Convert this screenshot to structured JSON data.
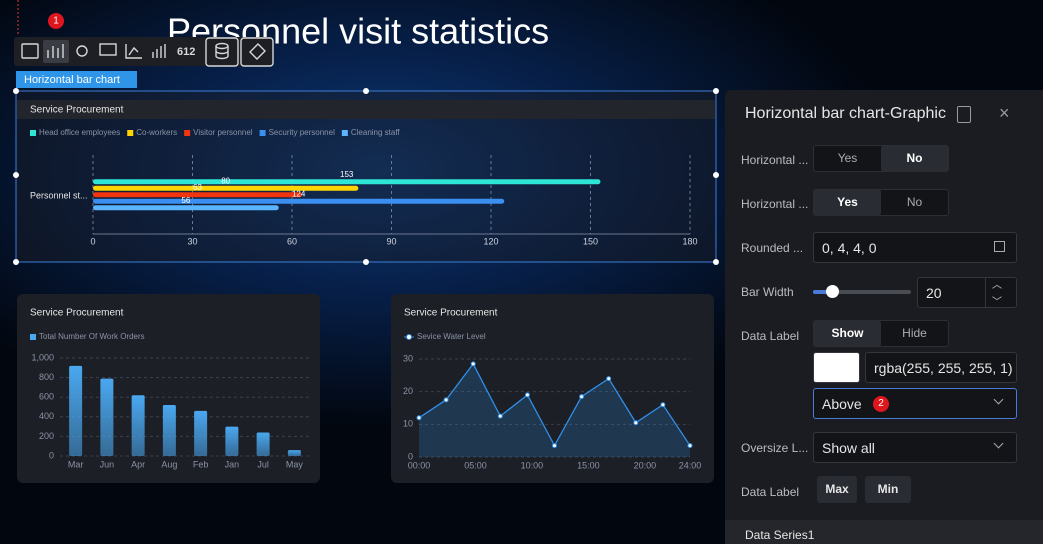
{
  "page_title": "Personnel visit statistics",
  "toolbar": {
    "badge": "1",
    "selected_label": "Horizontal bar chart"
  },
  "chart_data": [
    {
      "type": "hbar",
      "title": "Service Procurement",
      "categories": [
        "Personnel st..."
      ],
      "series": [
        {
          "name": "Head office employees",
          "color": "#2ee6d6",
          "values": [
            153
          ]
        },
        {
          "name": "Co-workers",
          "color": "#ffd400",
          "values": [
            80
          ]
        },
        {
          "name": "Visitor personnel",
          "color": "#f0350f",
          "values": [
            63
          ]
        },
        {
          "name": "Security personnel",
          "color": "#3a8ff0",
          "values": [
            124
          ]
        },
        {
          "name": "Cleaning staff",
          "color": "#5ab4ff",
          "values": [
            56
          ]
        }
      ],
      "xlim": [
        0,
        180
      ],
      "xticks": [
        0,
        30,
        60,
        90,
        120,
        150,
        180
      ],
      "grid": true
    },
    {
      "type": "bar",
      "title": "Service Procurement",
      "categories": [
        "Mar",
        "Jun",
        "Apr",
        "Aug",
        "Feb",
        "Jan",
        "Jul",
        "May"
      ],
      "series": [
        {
          "name": "Total Number Of Work Orders",
          "color": "#4aa8f0",
          "values": [
            920,
            790,
            620,
            520,
            460,
            300,
            240,
            60
          ]
        }
      ],
      "ylim": [
        0,
        1000
      ],
      "yticks": [
        0,
        200,
        400,
        600,
        800,
        {
          "value": 1000,
          "label": "1,000"
        }
      ],
      "grid": true
    },
    {
      "type": "line",
      "title": "Service Procurement",
      "x": [
        0,
        2.4,
        4.8,
        7.2,
        9.6,
        12,
        14.4,
        16.8,
        19.2,
        21.6,
        24
      ],
      "series": [
        {
          "name": "Sevice Water Level",
          "color": "#2f8fe8",
          "values": [
            12,
            17.5,
            28.5,
            12.5,
            19,
            3.5,
            18.5,
            24,
            10.5,
            16,
            3.5
          ]
        }
      ],
      "xlim": [
        0,
        24
      ],
      "xticks": [
        {
          "value": 0,
          "label": "00:00"
        },
        {
          "value": 5,
          "label": "05:00"
        },
        {
          "value": 10,
          "label": "10:00"
        },
        {
          "value": 15,
          "label": "15:00"
        },
        {
          "value": 20,
          "label": "20:00"
        },
        {
          "value": 24,
          "label": "24:00"
        }
      ],
      "ylim": [
        0,
        30
      ],
      "yticks": [
        0,
        10,
        20,
        30
      ],
      "grid": true
    }
  ],
  "panel": {
    "title": "Horizontal bar chart-Graphic",
    "horizontal_1": {
      "label": "Horizontal ...",
      "options": [
        "Yes",
        "No"
      ],
      "selected": 1
    },
    "horizontal_2": {
      "label": "Horizontal ...",
      "options": [
        "Yes",
        "No"
      ],
      "selected": 0
    },
    "rounded": {
      "label": "Rounded ...",
      "value": "0,  4,  4,  0"
    },
    "bar_width": {
      "label": "Bar Width",
      "value": 20
    },
    "data_label": {
      "label": "Data Label",
      "options": [
        "Show",
        "Hide"
      ],
      "selected": 0,
      "color": "rgba(255, 255, 255, 1)",
      "position": "Above",
      "badge": "2"
    },
    "oversize": {
      "label": "Oversize L...",
      "value": "Show all"
    },
    "data_label_2": {
      "label": "Data Label",
      "buttons": [
        "Max",
        "Min"
      ]
    },
    "series_section": "Data Series1"
  }
}
